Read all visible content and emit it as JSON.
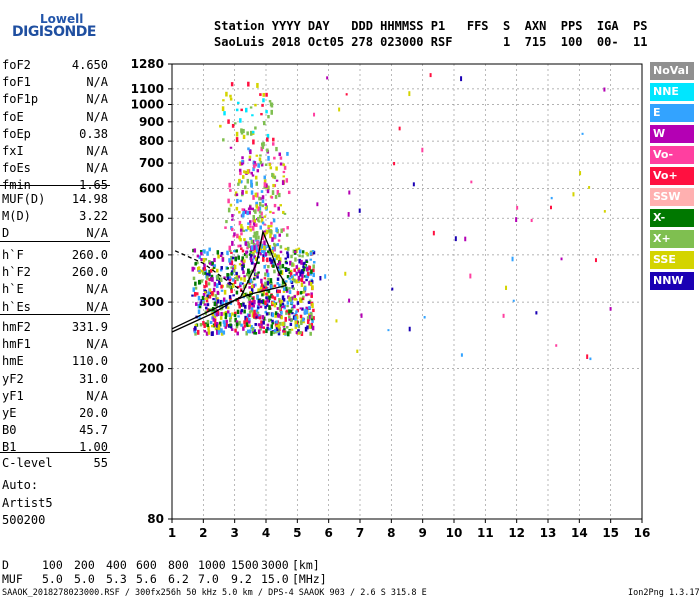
{
  "logo": {
    "line1": "Lowell",
    "line2": "DIGISONDE"
  },
  "header": {
    "line1": "Station YYYY DAY   DDD HHMMSS P1   FFS  S  AXN  PPS  IGA  PS",
    "line2": "SaoLuis 2018 Oct05 278 023000 RSF       1  715  100  00-  11"
  },
  "params": {
    "g1": [
      {
        "name": "foF2",
        "value": "4.650"
      },
      {
        "name": "foF1",
        "value": "N/A"
      },
      {
        "name": "foF1p",
        "value": "N/A"
      },
      {
        "name": "foE",
        "value": "N/A"
      },
      {
        "name": "foEp",
        "value": "0.38"
      },
      {
        "name": "fxI",
        "value": "N/A"
      },
      {
        "name": "foEs",
        "value": "N/A"
      },
      {
        "name": "fmin",
        "value": "1.65"
      }
    ],
    "g2": [
      {
        "name": "MUF(D)",
        "value": "14.98"
      },
      {
        "name": "M(D)",
        "value": "3.22"
      },
      {
        "name": "D",
        "value": "N/A"
      }
    ],
    "g3": [
      {
        "name": "h`F",
        "value": "260.0"
      },
      {
        "name": "h`F2",
        "value": "260.0"
      },
      {
        "name": "h`E",
        "value": "N/A"
      },
      {
        "name": "h`Es",
        "value": "N/A"
      }
    ],
    "g4": [
      {
        "name": "hmF2",
        "value": "331.9"
      },
      {
        "name": "hmF1",
        "value": "N/A"
      },
      {
        "name": "hmE",
        "value": "110.0"
      },
      {
        "name": "yF2",
        "value": "31.0"
      },
      {
        "name": "yF1",
        "value": "N/A"
      },
      {
        "name": "yE",
        "value": "20.0"
      },
      {
        "name": "B0",
        "value": "45.7"
      },
      {
        "name": "B1",
        "value": "1.00"
      }
    ],
    "g5": [
      {
        "name": "C-level",
        "value": "55"
      }
    ]
  },
  "autoscale": {
    "label": "Auto:",
    "artist": "Artist5",
    "version": "500200"
  },
  "muf_table": {
    "d_label": "D",
    "d_values": [
      "100",
      "200",
      "400",
      "600",
      "800",
      "1000",
      "1500",
      "3000"
    ],
    "d_unit": "[km]",
    "muf_label": "MUF",
    "muf_values": [
      "5.0",
      "5.0",
      "5.3",
      "5.6",
      "6.2",
      "7.0",
      "9.2",
      "15.0"
    ],
    "muf_unit": "[MHz]"
  },
  "footer": {
    "left": "SAAOK_2018278023000.RSF / 300fx256h 50 kHz 5.0 km / DPS-4 SAAOK 903 / 2.6 S 315.8 E",
    "right": "Ion2Png 1.3.17"
  },
  "legend": [
    {
      "label": "NoVal",
      "color": "#909090"
    },
    {
      "label": "NNE",
      "color": "#00e6ff"
    },
    {
      "label": "E",
      "color": "#33a3ff"
    },
    {
      "label": "W",
      "color": "#b400b4"
    },
    {
      "label": "Vo-",
      "color": "#ff3fa0"
    },
    {
      "label": "Vo+",
      "color": "#ff1040"
    },
    {
      "label": "SSW",
      "color": "#ffb0b0"
    },
    {
      "label": "X-",
      "color": "#007800"
    },
    {
      "label": "X+",
      "color": "#7fbf50"
    },
    {
      "label": "SSE",
      "color": "#d4d400"
    },
    {
      "label": "NNW",
      "color": "#1a00b4"
    }
  ],
  "chart_data": {
    "type": "scatter",
    "title": "",
    "xlabel": "",
    "ylabel": "",
    "x_ticks": [
      1,
      2,
      3,
      4,
      5,
      6,
      7,
      8,
      9,
      10,
      11,
      12,
      13,
      14,
      15,
      16
    ],
    "y_ticks": [
      80,
      200,
      300,
      400,
      500,
      600,
      700,
      800,
      900,
      1000,
      1100,
      1280
    ],
    "xlim": [
      1,
      16
    ],
    "ylim": [
      80,
      1280
    ],
    "y_scale": "log",
    "grid": "dashed",
    "clusters": [
      {
        "name": "main-echo",
        "x_range": [
          1.6,
          5.5
        ],
        "y_range": [
          250,
          420
        ],
        "count": 900,
        "colors": [
          "#b400b4",
          "#d4d400",
          "#ff1040",
          "#1a00b4",
          "#7fbf50",
          "#007800",
          "#33a3ff"
        ]
      },
      {
        "name": "multi-hop",
        "x_range": [
          2.6,
          4.8
        ],
        "y_range": [
          420,
          800
        ],
        "count": 280,
        "colors": [
          "#d4d400",
          "#7fbf50",
          "#33a3ff",
          "#ff3fa0",
          "#b400b4"
        ]
      },
      {
        "name": "sparse",
        "x_range": [
          2.5,
          4.2
        ],
        "y_range": [
          800,
          1150
        ],
        "count": 50,
        "colors": [
          "#d4d400",
          "#00e6ff",
          "#7fbf50",
          "#ff1040"
        ]
      },
      {
        "name": "scatter-right",
        "x_range": [
          5,
          15
        ],
        "y_range": [
          200,
          1250
        ],
        "count": 55,
        "colors": [
          "#ff1040",
          "#b400b4",
          "#d4d400",
          "#33a3ff",
          "#ff3fa0",
          "#1a00b4"
        ]
      }
    ],
    "trace_lines": [
      {
        "name": "profile-rising",
        "points": [
          [
            1,
            250
          ],
          [
            2.3,
            280
          ],
          [
            3.2,
            310
          ],
          [
            3.7,
            380
          ],
          [
            3.9,
            460
          ],
          [
            4.1,
            420
          ],
          [
            4.4,
            360
          ],
          [
            4.65,
            331.9
          ]
        ]
      },
      {
        "name": "profile-lower",
        "points": [
          [
            1,
            255
          ],
          [
            2.5,
            292
          ],
          [
            3.5,
            315
          ],
          [
            4.65,
            331.9
          ]
        ]
      },
      {
        "name": "dashed-trace",
        "points": [
          [
            1.1,
            410
          ],
          [
            2.0,
            380
          ],
          [
            2.8,
            340
          ],
          [
            3.5,
            310
          ]
        ],
        "style": "dashed"
      }
    ]
  }
}
